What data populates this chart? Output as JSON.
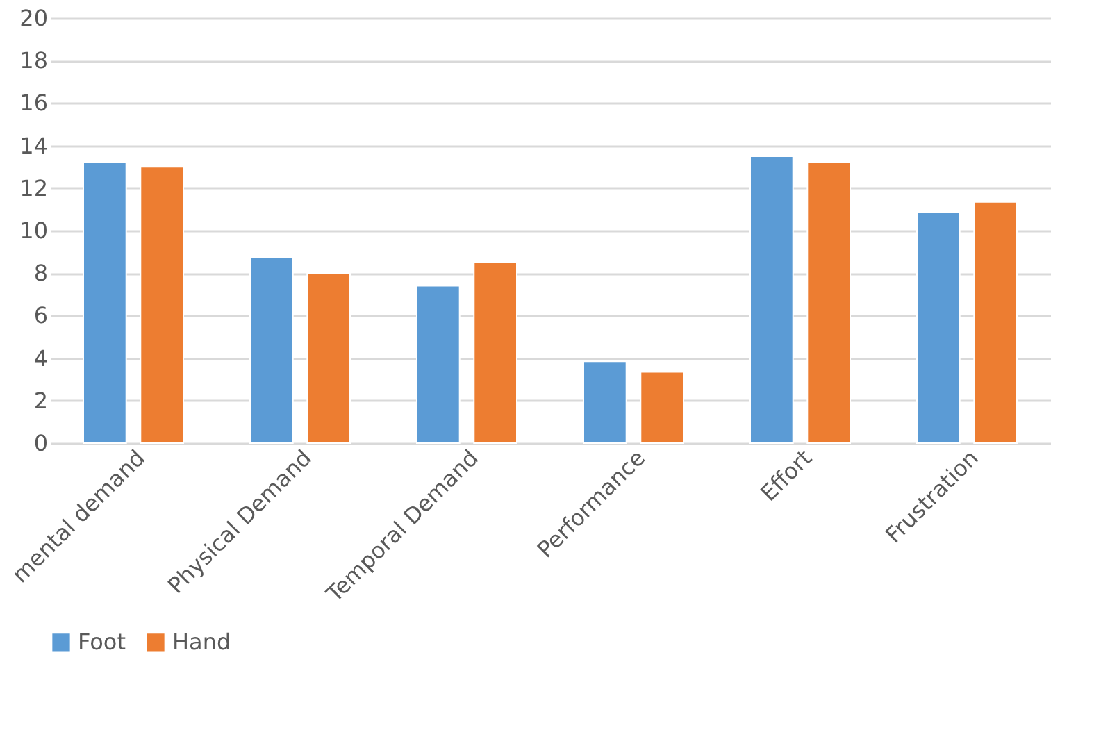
{
  "chart_data": {
    "type": "bar",
    "categories": [
      "mental demand",
      "Physical Demand",
      "Temporal Demand",
      "Performance",
      "Effort",
      "Frustration"
    ],
    "series": [
      {
        "name": "Foot",
        "color": "#5b9bd5",
        "values": [
          13.2,
          8.75,
          7.4,
          3.85,
          13.5,
          10.85
        ]
      },
      {
        "name": "Hand",
        "color": "#ed7d31",
        "values": [
          13.0,
          8.0,
          8.5,
          3.35,
          13.2,
          11.35
        ]
      }
    ],
    "ylim": [
      0,
      20
    ],
    "yticks": [
      0,
      2,
      4,
      6,
      8,
      10,
      12,
      14,
      16,
      18,
      20
    ],
    "grid": "y",
    "legend": "bottom"
  }
}
